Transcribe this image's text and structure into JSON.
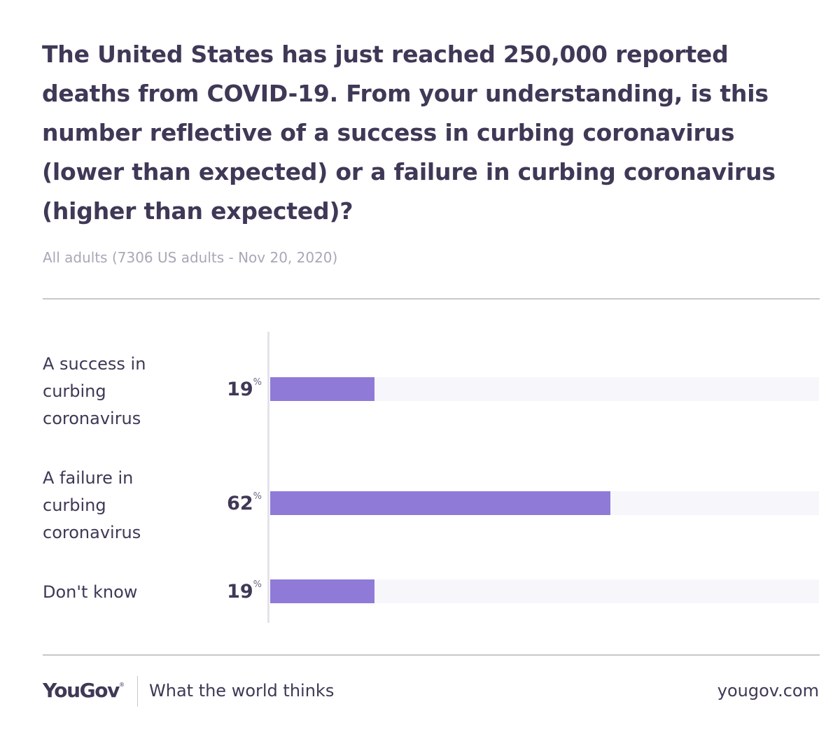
{
  "title": "The United States has just reached 250,000 reported deaths from COVID-19. From your understanding, is this number reflective of a success in curbing coronavirus (lower than expected) or a failure in curbing coronavirus (higher than expected)?",
  "subtitle": "All adults (7306 US adults - Nov 20, 2020)",
  "footer": {
    "brand": "YouGov",
    "brand_mark": "®",
    "tagline": "What the world thinks",
    "url": "yougov.com"
  },
  "colors": {
    "bar": "#8f7ad8",
    "track": "#f7f6fb",
    "text": "#3f3856",
    "subtitle": "#aaa7b7"
  },
  "chart_data": {
    "type": "bar",
    "orientation": "horizontal",
    "categories": [
      "A success in curbing coronavirus",
      "A failure in curbing coronavirus",
      "Don't know"
    ],
    "values": [
      19,
      62,
      19
    ],
    "value_suffix": "%",
    "xlim": [
      0,
      100
    ],
    "title": "The United States has just reached 250,000 reported deaths from COVID-19. From your understanding, is this number reflective of a success in curbing coronavirus (lower than expected) or a failure in curbing coronavirus (higher than expected)?",
    "subtitle": "All adults (7306 US adults - Nov 20, 2020)",
    "grid": false,
    "legend": "none"
  }
}
